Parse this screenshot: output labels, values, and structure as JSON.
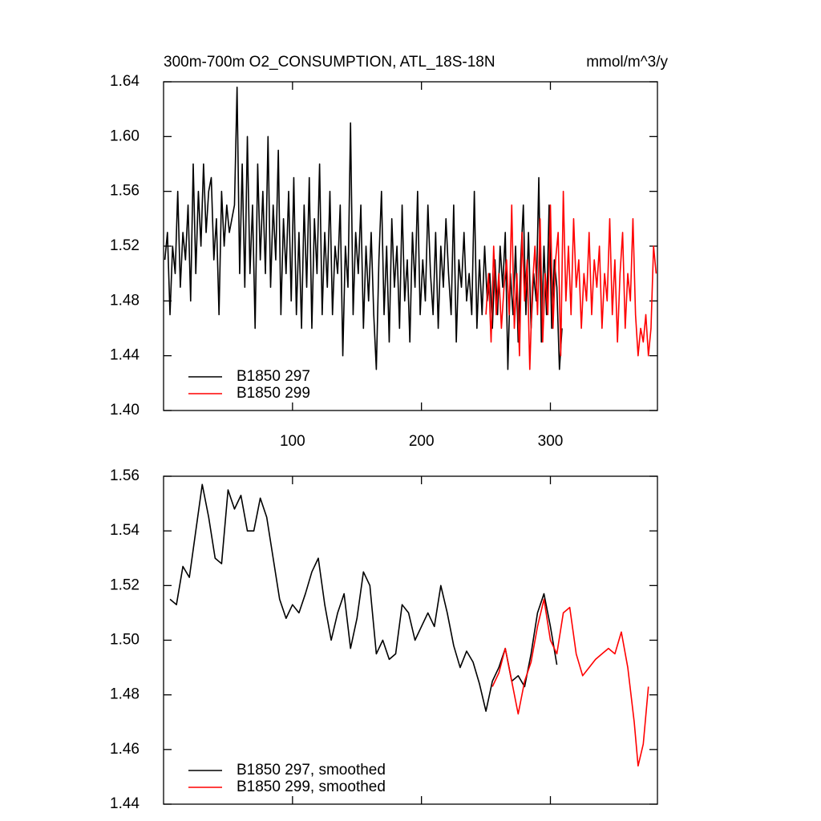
{
  "chart_data": [
    {
      "type": "line",
      "title": "300m-700m O2_CONSUMPTION, ATL_18S-18N",
      "title_right": "mmol/m^3/y",
      "xlim": [
        0,
        383
      ],
      "xticks": [
        100,
        200,
        300
      ],
      "show_xtick_labels": true,
      "ylim": [
        1.4,
        1.64
      ],
      "yticks": [
        {
          "value": 1.4,
          "label": "1.40"
        },
        1.44,
        1.48,
        1.52,
        1.56,
        {
          "value": 1.6,
          "label": "1.60"
        },
        1.64
      ],
      "legend": "lower left",
      "series": [
        {
          "name": "B1850 297",
          "color": "#000000",
          "x": [
            1,
            3,
            5,
            7,
            9,
            11,
            13,
            15,
            17,
            19,
            21,
            23,
            25,
            27,
            29,
            31,
            33,
            35,
            37,
            39,
            41,
            43,
            45,
            47,
            49,
            51,
            53,
            55,
            57,
            59,
            61,
            63,
            65,
            67,
            69,
            71,
            73,
            75,
            77,
            79,
            81,
            83,
            85,
            87,
            89,
            91,
            93,
            95,
            97,
            99,
            101,
            103,
            105,
            107,
            109,
            111,
            113,
            115,
            117,
            119,
            121,
            123,
            125,
            127,
            129,
            131,
            133,
            135,
            137,
            139,
            141,
            143,
            145,
            147,
            149,
            151,
            153,
            155,
            157,
            159,
            161,
            163,
            165,
            167,
            169,
            171,
            173,
            175,
            177,
            179,
            181,
            183,
            185,
            187,
            189,
            191,
            193,
            195,
            197,
            199,
            201,
            203,
            205,
            207,
            209,
            211,
            213,
            215,
            217,
            219,
            221,
            223,
            225,
            227,
            229,
            231,
            233,
            235,
            237,
            239,
            241,
            243,
            245,
            247,
            249,
            251,
            253,
            255,
            257,
            259,
            261,
            263,
            265,
            267,
            269,
            271,
            273,
            275,
            277,
            279,
            281,
            283,
            285,
            287,
            289,
            291,
            293,
            295,
            297,
            299,
            301,
            303,
            305,
            307,
            309
          ],
          "values": [
            1.51,
            1.53,
            1.47,
            1.52,
            1.5,
            1.56,
            1.49,
            1.53,
            1.51,
            1.55,
            1.48,
            1.58,
            1.5,
            1.56,
            1.52,
            1.58,
            1.53,
            1.56,
            1.57,
            1.51,
            1.54,
            1.47,
            1.56,
            1.52,
            1.55,
            1.53,
            1.54,
            1.55,
            1.636,
            1.5,
            1.58,
            1.49,
            1.6,
            1.5,
            1.55,
            1.46,
            1.58,
            1.51,
            1.56,
            1.5,
            1.6,
            1.49,
            1.55,
            1.51,
            1.59,
            1.47,
            1.54,
            1.5,
            1.56,
            1.48,
            1.57,
            1.47,
            1.53,
            1.46,
            1.55,
            1.49,
            1.57,
            1.46,
            1.54,
            1.5,
            1.58,
            1.47,
            1.53,
            1.49,
            1.56,
            1.47,
            1.52,
            1.5,
            1.55,
            1.44,
            1.52,
            1.49,
            1.61,
            1.47,
            1.53,
            1.5,
            1.55,
            1.46,
            1.52,
            1.48,
            1.53,
            1.47,
            1.43,
            1.51,
            1.56,
            1.47,
            1.52,
            1.45,
            1.54,
            1.49,
            1.52,
            1.46,
            1.55,
            1.48,
            1.51,
            1.45,
            1.53,
            1.49,
            1.56,
            1.47,
            1.51,
            1.48,
            1.55,
            1.5,
            1.47,
            1.53,
            1.46,
            1.52,
            1.49,
            1.54,
            1.5,
            1.47,
            1.55,
            1.45,
            1.51,
            1.49,
            1.53,
            1.48,
            1.5,
            1.47,
            1.56,
            1.46,
            1.51,
            1.47,
            1.52,
            1.48,
            1.5,
            1.46,
            1.51,
            1.47,
            1.52,
            1.49,
            1.53,
            1.43,
            1.5,
            1.47,
            1.52,
            1.45,
            1.51,
            1.55,
            1.47,
            1.53,
            1.46,
            1.5,
            1.48,
            1.57,
            1.45,
            1.52,
            1.47,
            1.55,
            1.46,
            1.51,
            1.49,
            1.43,
            1.46
          ]
        },
        {
          "name": "B1850 299",
          "color": "#ff0000",
          "x": [
            250,
            252,
            254,
            256,
            258,
            260,
            262,
            264,
            266,
            268,
            270,
            272,
            274,
            276,
            278,
            280,
            282,
            284,
            286,
            288,
            290,
            292,
            294,
            296,
            298,
            300,
            302,
            304,
            306,
            308,
            310,
            312,
            314,
            316,
            318,
            320,
            322,
            324,
            326,
            328,
            330,
            332,
            334,
            336,
            338,
            340,
            342,
            344,
            346,
            348,
            350,
            352,
            354,
            356,
            358,
            360,
            362,
            364,
            366,
            368,
            370,
            372,
            374,
            376,
            378,
            380,
            382
          ],
          "values": [
            1.47,
            1.5,
            1.45,
            1.52,
            1.47,
            1.5,
            1.46,
            1.49,
            1.51,
            1.47,
            1.55,
            1.46,
            1.5,
            1.44,
            1.53,
            1.48,
            1.51,
            1.43,
            1.49,
            1.52,
            1.47,
            1.54,
            1.45,
            1.5,
            1.47,
            1.55,
            1.46,
            1.51,
            1.53,
            1.44,
            1.56,
            1.48,
            1.52,
            1.47,
            1.54,
            1.49,
            1.51,
            1.46,
            1.5,
            1.48,
            1.53,
            1.47,
            1.51,
            1.49,
            1.52,
            1.46,
            1.5,
            1.48,
            1.54,
            1.47,
            1.51,
            1.45,
            1.5,
            1.53,
            1.46,
            1.5,
            1.48,
            1.54,
            1.47,
            1.44,
            1.46,
            1.45,
            1.47,
            1.44,
            1.46,
            1.52,
            1.5
          ]
        }
      ]
    },
    {
      "type": "line",
      "xlim": [
        0,
        383
      ],
      "xticks": [
        100,
        200,
        300
      ],
      "show_xtick_labels": false,
      "ylim": [
        1.44,
        1.56
      ],
      "yticks": [
        1.44,
        1.46,
        1.48,
        {
          "value": 1.5,
          "label": "1.50"
        },
        1.52,
        1.54,
        1.56
      ],
      "legend": "lower left",
      "series": [
        {
          "name": "B1850 297, smoothed",
          "color": "#000000",
          "x": [
            5,
            10,
            15,
            20,
            25,
            30,
            35,
            40,
            45,
            50,
            55,
            60,
            65,
            70,
            75,
            80,
            85,
            90,
            95,
            100,
            105,
            110,
            115,
            120,
            125,
            130,
            135,
            140,
            145,
            150,
            155,
            160,
            165,
            170,
            175,
            180,
            185,
            190,
            195,
            200,
            205,
            210,
            215,
            220,
            225,
            230,
            235,
            240,
            245,
            250,
            255,
            260,
            265,
            270,
            275,
            280,
            285,
            290,
            295,
            300,
            305
          ],
          "values": [
            1.515,
            1.513,
            1.527,
            1.523,
            1.54,
            1.557,
            1.545,
            1.53,
            1.528,
            1.555,
            1.548,
            1.553,
            1.54,
            1.54,
            1.552,
            1.545,
            1.53,
            1.515,
            1.508,
            1.513,
            1.51,
            1.517,
            1.525,
            1.53,
            1.513,
            1.5,
            1.51,
            1.517,
            1.497,
            1.508,
            1.525,
            1.52,
            1.495,
            1.5,
            1.493,
            1.495,
            1.513,
            1.51,
            1.5,
            1.505,
            1.51,
            1.505,
            1.52,
            1.51,
            1.498,
            1.49,
            1.496,
            1.492,
            1.484,
            1.474,
            1.485,
            1.49,
            1.497,
            1.485,
            1.487,
            1.483,
            1.495,
            1.51,
            1.517,
            1.505,
            1.491
          ]
        },
        {
          "name": "B1850 299, smoothed",
          "color": "#ff0000",
          "x": [
            255,
            260,
            265,
            270,
            275,
            280,
            285,
            290,
            295,
            300,
            305,
            310,
            315,
            320,
            325,
            330,
            335,
            340,
            345,
            350,
            355,
            360,
            365,
            368,
            372,
            376
          ],
          "values": [
            1.483,
            1.488,
            1.497,
            1.485,
            1.473,
            1.485,
            1.492,
            1.505,
            1.515,
            1.5,
            1.495,
            1.51,
            1.512,
            1.495,
            1.487,
            1.49,
            1.493,
            1.495,
            1.497,
            1.495,
            1.503,
            1.49,
            1.47,
            1.454,
            1.462,
            1.483
          ]
        }
      ]
    }
  ]
}
